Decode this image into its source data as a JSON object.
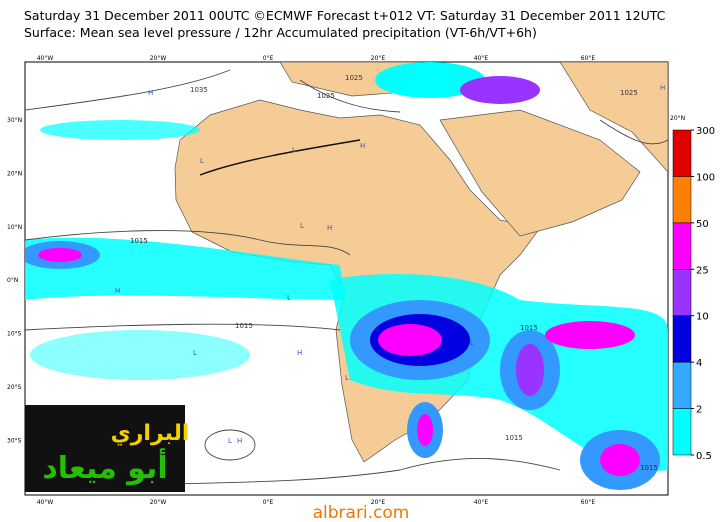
{
  "header": {
    "line1": "Saturday 31 December 2011 00UTC ©ECMWF Forecast t+012 VT: Saturday 31 December 2011 12UTC",
    "line2": "Surface: Mean sea level pressure / 12hr Accumulated precipitation (VT-6h/VT+6h)"
  },
  "map": {
    "lon_labels": [
      "40°W",
      "20°W",
      "0°E",
      "20°E",
      "40°E",
      "60°E"
    ],
    "lat_labels": [
      "30°N",
      "20°N",
      "10°N",
      "0°N",
      "10°S",
      "20°S",
      "30°S"
    ],
    "lat_label_right": "20°N",
    "isobar_labels": [
      "1035",
      "1025",
      "1025",
      "1015",
      "1015",
      "1015",
      "1015",
      "1015",
      "1025"
    ],
    "pressure_centers": [
      "H",
      "H",
      "L",
      "L",
      "H",
      "L",
      "H",
      "L",
      "L",
      "H",
      "L",
      "L",
      "H",
      "L",
      "H"
    ]
  },
  "colorbar": {
    "levels": [
      0.5,
      2,
      4,
      10,
      25,
      50,
      100,
      300
    ],
    "colors": [
      "#00ffff",
      "#33aaff",
      "#0000e0",
      "#9933ff",
      "#ff00ff",
      "#ff8000",
      "#e00000"
    ]
  },
  "watermark": {
    "line1": "البراري",
    "line2": "أبو ميعاد"
  },
  "footer": "albrari.com"
}
